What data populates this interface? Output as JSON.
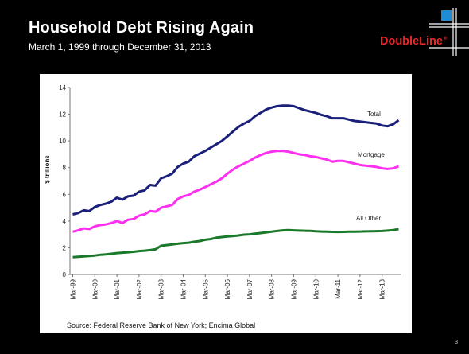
{
  "slide": {
    "title": "Household Debt Rising Again",
    "subtitle": "March 1, 1999 through December 31, 2013",
    "logo_text": "DoubleLine",
    "logo_mark": "®",
    "page_number": "3",
    "source": "Source: Federal Reserve Bank of New York; Encima Global"
  },
  "colors": {
    "accent_red": "#e8272a",
    "logo_blue": "#1f8dd6"
  },
  "chart_data": {
    "type": "line",
    "title": "",
    "xlabel": "",
    "ylabel": "$ trillions",
    "ylim": [
      0,
      14
    ],
    "yticks": [
      0,
      2,
      4,
      6,
      8,
      10,
      12,
      14
    ],
    "grid": false,
    "xticks": [
      "Mar-99",
      "Mar-00",
      "Mar-01",
      "Mar-02",
      "Mar-03",
      "Mar-04",
      "Mar-05",
      "Mar-06",
      "Mar-07",
      "Mar-08",
      "Mar-09",
      "Mar-10",
      "Mar-11",
      "Mar-12",
      "Mar-13"
    ],
    "x": [
      "1999Q1",
      "1999Q2",
      "1999Q3",
      "1999Q4",
      "2000Q1",
      "2000Q2",
      "2000Q3",
      "2000Q4",
      "2001Q1",
      "2001Q2",
      "2001Q3",
      "2001Q4",
      "2002Q1",
      "2002Q2",
      "2002Q3",
      "2002Q4",
      "2003Q1",
      "2003Q2",
      "2003Q3",
      "2003Q4",
      "2004Q1",
      "2004Q2",
      "2004Q3",
      "2004Q4",
      "2005Q1",
      "2005Q2",
      "2005Q3",
      "2005Q4",
      "2006Q1",
      "2006Q2",
      "2006Q3",
      "2006Q4",
      "2007Q1",
      "2007Q2",
      "2007Q3",
      "2007Q4",
      "2008Q1",
      "2008Q2",
      "2008Q3",
      "2008Q4",
      "2009Q1",
      "2009Q2",
      "2009Q3",
      "2009Q4",
      "2010Q1",
      "2010Q2",
      "2010Q3",
      "2010Q4",
      "2011Q1",
      "2011Q2",
      "2011Q3",
      "2011Q4",
      "2012Q1",
      "2012Q2",
      "2012Q3",
      "2012Q4",
      "2013Q1",
      "2013Q2",
      "2013Q3",
      "2013Q4"
    ],
    "series": [
      {
        "name": "Total",
        "color": "#1a1f7a",
        "values": [
          4.5,
          4.6,
          4.8,
          4.75,
          5.05,
          5.2,
          5.3,
          5.45,
          5.75,
          5.6,
          5.85,
          5.9,
          6.2,
          6.3,
          6.7,
          6.65,
          7.2,
          7.35,
          7.55,
          8.05,
          8.3,
          8.45,
          8.85,
          9.05,
          9.25,
          9.5,
          9.75,
          10.0,
          10.35,
          10.7,
          11.05,
          11.3,
          11.5,
          11.85,
          12.1,
          12.35,
          12.5,
          12.6,
          12.65,
          12.65,
          12.6,
          12.45,
          12.3,
          12.2,
          12.1,
          11.95,
          11.85,
          11.7,
          11.7,
          11.7,
          11.6,
          11.5,
          11.45,
          11.4,
          11.35,
          11.3,
          11.15,
          11.1,
          11.25,
          11.55
        ]
      },
      {
        "name": "Mortgage",
        "color": "#ff2ff0",
        "values": [
          3.2,
          3.3,
          3.45,
          3.4,
          3.6,
          3.7,
          3.75,
          3.85,
          4.0,
          3.85,
          4.1,
          4.15,
          4.4,
          4.5,
          4.75,
          4.7,
          5.0,
          5.1,
          5.2,
          5.65,
          5.85,
          5.95,
          6.2,
          6.35,
          6.55,
          6.75,
          6.95,
          7.2,
          7.55,
          7.85,
          8.1,
          8.3,
          8.5,
          8.75,
          8.95,
          9.1,
          9.2,
          9.25,
          9.25,
          9.2,
          9.1,
          9.0,
          8.95,
          8.85,
          8.8,
          8.7,
          8.6,
          8.45,
          8.5,
          8.5,
          8.4,
          8.3,
          8.2,
          8.15,
          8.1,
          8.05,
          7.95,
          7.9,
          7.95,
          8.1
        ]
      },
      {
        "name": "All Other",
        "color": "#1a7a2a",
        "values": [
          1.3,
          1.32,
          1.35,
          1.38,
          1.42,
          1.47,
          1.5,
          1.55,
          1.6,
          1.63,
          1.66,
          1.7,
          1.75,
          1.78,
          1.82,
          1.88,
          2.15,
          2.2,
          2.25,
          2.3,
          2.35,
          2.38,
          2.45,
          2.5,
          2.6,
          2.65,
          2.75,
          2.8,
          2.85,
          2.88,
          2.92,
          2.98,
          3.0,
          3.05,
          3.1,
          3.15,
          3.2,
          3.25,
          3.3,
          3.32,
          3.3,
          3.28,
          3.27,
          3.26,
          3.23,
          3.21,
          3.2,
          3.19,
          3.18,
          3.19,
          3.2,
          3.2,
          3.21,
          3.22,
          3.23,
          3.24,
          3.25,
          3.28,
          3.32,
          3.4
        ]
      }
    ]
  }
}
